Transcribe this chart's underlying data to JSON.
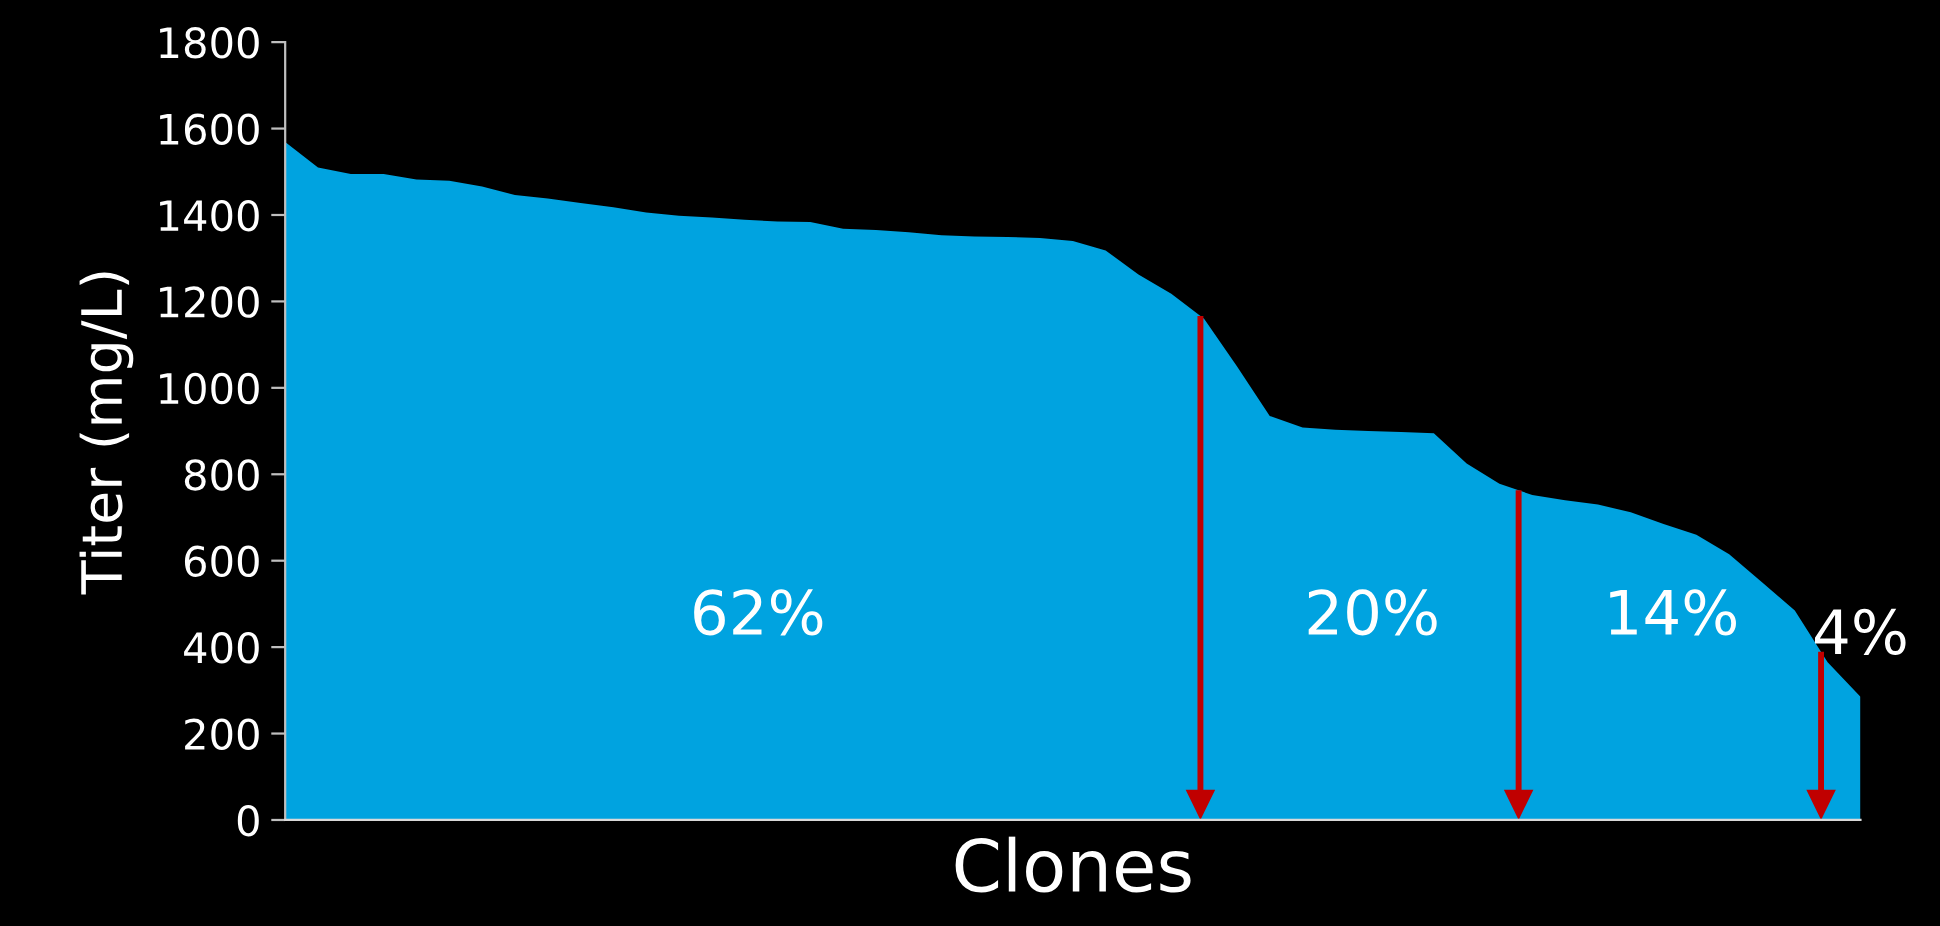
{
  "chart_data": {
    "type": "area",
    "xlabel": "Clones",
    "ylabel": "Titer (mg/L)",
    "categories": [
      null,
      null,
      null,
      null,
      null,
      null,
      null,
      null,
      null,
      null,
      null,
      null,
      null,
      null,
      null,
      null,
      null,
      null,
      null,
      null,
      null,
      null,
      null,
      null,
      null,
      null,
      null,
      null,
      null,
      null,
      null,
      null,
      null,
      null,
      null,
      null,
      null,
      null,
      null,
      null,
      null,
      null,
      null,
      null,
      null,
      null,
      null,
      null,
      null
    ],
    "series": [
      {
        "color": "#00a3e0",
        "values": [
          1569,
          1510,
          1495,
          1495,
          1482,
          1479,
          1466,
          1446,
          1438,
          1428,
          1418,
          1406,
          1398,
          1394,
          1389,
          1385,
          1384,
          1368,
          1365,
          1360,
          1353,
          1350,
          1349,
          1347,
          1340,
          1318,
          1262,
          1218,
          1160,
          1050,
          935,
          908,
          903,
          900,
          898,
          895,
          825,
          778,
          752,
          740,
          730,
          712,
          685,
          660,
          615,
          550,
          485,
          365,
          285
        ]
      }
    ],
    "ylim": [
      0,
      1800
    ],
    "yticks": [
      0,
      200,
      400,
      600,
      800,
      1000,
      1200,
      1400,
      1600,
      1800
    ],
    "annotations": [
      "62%",
      "20%",
      "14%",
      "4%"
    ],
    "grid": false,
    "legend": false,
    "tick_labels": "y"
  }
}
